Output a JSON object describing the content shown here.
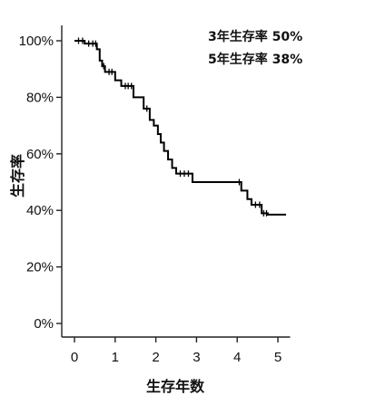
{
  "chart_data": {
    "type": "line",
    "subtype": "kaplan-meier-step",
    "xlabel": "生存年数",
    "ylabel": "生存率",
    "xlim": [
      -0.3,
      5.3
    ],
    "ylim": [
      -5,
      105
    ],
    "xticks": [
      0,
      1,
      2,
      3,
      4,
      5
    ],
    "yticks": [
      0,
      20,
      40,
      60,
      80,
      100
    ],
    "ytick_labels": [
      "0%",
      "20%",
      "40%",
      "60%",
      "80%",
      "100%"
    ],
    "annotations": [
      {
        "text": "3年生存率  50%"
      },
      {
        "text": "5年生存率  38%"
      }
    ],
    "series": [
      {
        "steps": [
          [
            0.0,
            100
          ],
          [
            0.25,
            99
          ],
          [
            0.55,
            97
          ],
          [
            0.62,
            93
          ],
          [
            0.68,
            91
          ],
          [
            0.75,
            89
          ],
          [
            1.0,
            86
          ],
          [
            1.15,
            84
          ],
          [
            1.45,
            80
          ],
          [
            1.7,
            76
          ],
          [
            1.85,
            72
          ],
          [
            1.95,
            70
          ],
          [
            2.05,
            67
          ],
          [
            2.12,
            64
          ],
          [
            2.2,
            61
          ],
          [
            2.3,
            58
          ],
          [
            2.4,
            55
          ],
          [
            2.5,
            53
          ],
          [
            2.9,
            50
          ],
          [
            4.1,
            47
          ],
          [
            4.25,
            44
          ],
          [
            4.35,
            42
          ],
          [
            4.6,
            39
          ],
          [
            4.75,
            38.5
          ],
          [
            5.2,
            38.5
          ]
        ],
        "censored": [
          [
            0.1,
            100
          ],
          [
            0.2,
            100
          ],
          [
            0.35,
            99
          ],
          [
            0.45,
            99
          ],
          [
            0.52,
            99
          ],
          [
            0.72,
            91
          ],
          [
            0.85,
            89
          ],
          [
            0.92,
            89
          ],
          [
            1.25,
            84
          ],
          [
            1.32,
            84
          ],
          [
            1.4,
            84
          ],
          [
            1.78,
            76
          ],
          [
            2.6,
            53
          ],
          [
            2.7,
            53
          ],
          [
            2.8,
            53
          ],
          [
            4.05,
            50
          ],
          [
            4.45,
            42
          ],
          [
            4.55,
            42
          ],
          [
            4.65,
            39
          ],
          [
            4.72,
            39
          ]
        ]
      }
    ]
  }
}
